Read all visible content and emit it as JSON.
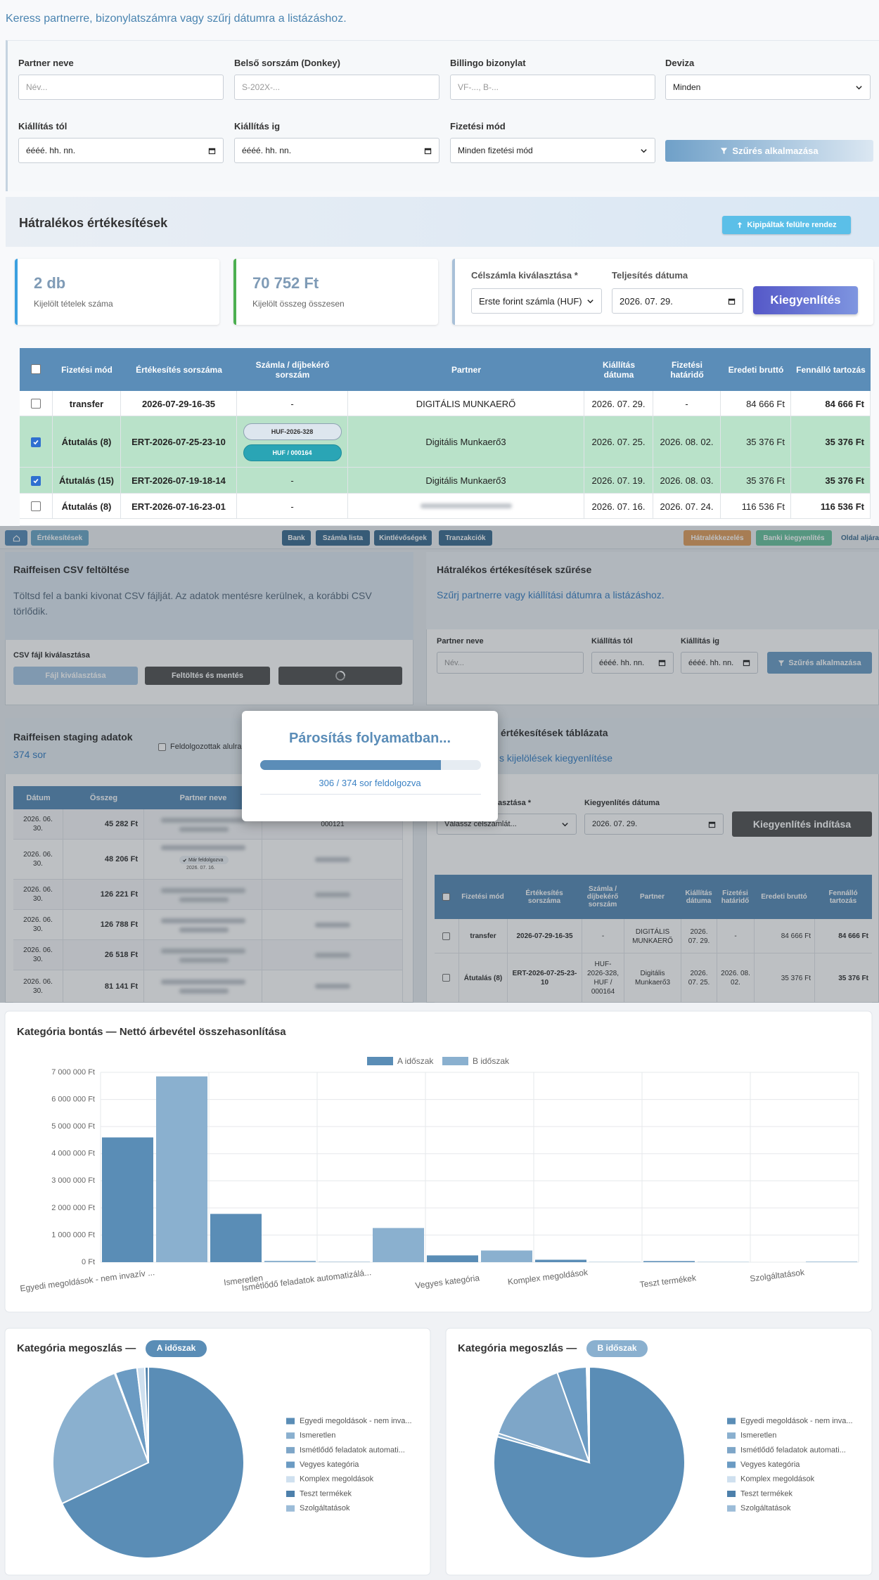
{
  "search_hint": "Keress partnerre, bizonylatszámra vagy szűrj dátumra a listázáshoz.",
  "filters": {
    "fields": [
      {
        "label": "Partner neve",
        "placeholder": "Név..."
      },
      {
        "label": "Belső sorszám (Donkey)",
        "placeholder": "S-202X-..."
      },
      {
        "label": "Billingo bizonylat",
        "placeholder": "VF-..., B-..."
      },
      {
        "label": "Deviza",
        "placeholder": "Minden"
      },
      {
        "label": "Kiállítás tól",
        "placeholder": "éééé. hh. nn."
      },
      {
        "label": "Kiállítás ig",
        "placeholder": "éééé. hh. nn."
      },
      {
        "label": "Fizetési mód",
        "placeholder": "Minden fizetési mód"
      }
    ],
    "button": "Szűrés alkalmazása"
  },
  "overdue": {
    "title": "Hátralékos értékesítések",
    "sort_button": "Kipipáltak felülre rendez",
    "stats": [
      {
        "value": "2 db",
        "label": "Kijelölt tételek száma"
      },
      {
        "value": "70 752 Ft",
        "label": "Kijelölt összeg összesen"
      }
    ],
    "settle": {
      "account_label": "Célszámla kiválasztása *",
      "account_value": "Erste forint számla (HUF)",
      "date_label": "Teljesítés dátuma",
      "date_value": "2026. 07. 29.",
      "button": "Kiegyenlítés"
    },
    "table": {
      "headers": [
        "Fizetési mód",
        "Értékesítés sorszáma",
        "Számla / díjbekérő sorszám",
        "Partner",
        "Kiállítás dátuma",
        "Fizetési határidő",
        "Eredeti bruttó",
        "Fennálló tartozás"
      ],
      "rows": [
        {
          "checked": false,
          "cells": [
            "transfer",
            "2026-07-29-16-35",
            "-",
            "DIGITÁLIS MUNKAERŐ",
            "2026. 07. 29.",
            "-",
            "84 666 Ft",
            "84 666 Ft"
          ]
        },
        {
          "checked": true,
          "cells": [
            "Átutalás (8)",
            "ERT-2026-07-25-23-10",
            [
              "HUF-2026-328",
              "HUF / 000164"
            ],
            "Digitális Munkaerő3",
            "2026. 07. 25.",
            "2026. 08. 02.",
            "35 376 Ft",
            "35 376 Ft"
          ]
        },
        {
          "checked": true,
          "cells": [
            "Átutalás (15)",
            "ERT-2026-07-19-18-14",
            "-",
            "Digitális Munkaerő3",
            "2026. 07. 19.",
            "2026. 08. 03.",
            "35 376 Ft",
            "35 376 Ft"
          ]
        },
        {
          "checked": false,
          "cells": [
            "Átutalás (8)",
            "ERT-2026-07-16-23-01",
            "-",
            null,
            "2026. 07. 16.",
            "2026. 07. 24.",
            "116 536 Ft",
            "116 536 Ft"
          ]
        }
      ]
    }
  },
  "background": {
    "nav": [
      "Értékesítések",
      "Bank",
      "Számla lista",
      "Kintlévőségek",
      "Tranzakciók",
      "Hátralékkezelés",
      "Banki kiegyenlítés",
      "Oldal aljára"
    ],
    "csv": {
      "title": "Raiffeisen CSV feltöltése",
      "desc": "Töltsd fel a banki kivonat CSV fájlját. Az adatok mentésre kerülnek, a korábbi CSV törlődik.",
      "file_label": "CSV fájl kiválasztása",
      "buttons": [
        "Fájl kiválasztása",
        "Feltöltés és mentés"
      ]
    },
    "filter": {
      "title": "Hátralékos értékesítések szűrése",
      "desc": "Szűrj partnerre vagy kiállítási dátumra a listázáshoz.",
      "fields": [
        {
          "label": "Partner neve",
          "placeholder": "Név..."
        },
        {
          "label": "Kiállítás tól",
          "placeholder": "éééé. hh. nn."
        },
        {
          "label": "Kiállítás ig",
          "placeholder": "éééé. hh. nn."
        }
      ],
      "button": "Szűrés alkalmazása"
    },
    "staging": {
      "title": "Raiffeisen staging adatok",
      "count": "374 sor",
      "toggle": "Feldolgozottak alulra",
      "headers": [
        "Dátum",
        "Összeg",
        "Partner neve"
      ],
      "rows": [
        {
          "date": "2026. 06. 30.",
          "amount": "45 282 Ft",
          "ref": "000121"
        },
        {
          "date": "2026. 06. 30.",
          "amount": "48 206 Ft",
          "note": {
            "status": "Már feldolgozva",
            "date": "2026. 07. 16."
          }
        },
        {
          "date": "2026. 06. 30.",
          "amount": "126 221 Ft"
        },
        {
          "date": "2026. 06. 30.",
          "amount": "126 788 Ft"
        },
        {
          "date": "2026. 06. 30.",
          "amount": "26 518 Ft"
        },
        {
          "date": "2026. 06. 30.",
          "amount": "81 141 Ft"
        }
      ]
    },
    "settle": {
      "title": "értékesítések táblázata",
      "desc": "s kijelölések kiegyenlítése",
      "account_label": "asztása *",
      "account_value": "Válassz célszámlát...",
      "date_label": "Kiegyenlítés dátuma",
      "date_value": "2026. 07. 29.",
      "button": "Kiegyenlítés indítása",
      "table": {
        "headers": [
          "Fizetési mód",
          "Értékesítés sorszáma",
          "Számla / díjbekérő sorszám",
          "Partner",
          "Kiállítás dátuma",
          "Fizetési határidő",
          "Eredeti bruttó",
          "Fennálló tartozás"
        ],
        "rows": [
          {
            "cells": [
              "transfer",
              "2026-07-29-16-35",
              "-",
              "DIGITÁLIS MUNKAERŐ",
              "2026. 07. 29.",
              "-",
              "84 666 Ft",
              "84 666 Ft"
            ]
          },
          {
            "cells": [
              "Átutalás (8)",
              "ERT-2026-07-25-23-10",
              "HUF-2026-328, HUF / 000164",
              "Digitális Munkaerő3",
              "2026. 07. 25.",
              "2026. 08. 02.",
              "35 376 Ft",
              "35 376 Ft"
            ]
          }
        ]
      }
    }
  },
  "modal": {
    "title": "Párosítás folyamatban...",
    "progress": {
      "done": 306,
      "total": 374,
      "label": "306 / 374 sor feldolgozva"
    }
  },
  "chart_data": [
    {
      "type": "bar",
      "title": "Kategória bontás — Nettó árbevétel összehasonlítása",
      "categories": [
        "Egyedi megoldások - nem invazív ...",
        "Ismeretlen",
        "Ismétlődő feladatok automatizálá...",
        "Vegyes kategória",
        "Komplex megoldások",
        "Teszt termékek",
        "Szolgáltatások"
      ],
      "series": [
        {
          "name": "A időszak",
          "color": "#5a8db6",
          "values": [
            4600000,
            1780000,
            10000,
            250000,
            90000,
            40000,
            0
          ]
        },
        {
          "name": "B időszak",
          "color": "#8ab0cf",
          "values": [
            6850000,
            50000,
            1260000,
            430000,
            10000,
            10000,
            20000
          ]
        }
      ],
      "ylim": [
        0,
        7000000
      ],
      "yticks": [
        {
          "value": 0,
          "label": "0 Ft"
        },
        {
          "value": 1000000,
          "label": "1 000 000 Ft"
        },
        {
          "value": 2000000,
          "label": "2 000 000 Ft"
        },
        {
          "value": 3000000,
          "label": "3 000 000 Ft"
        },
        {
          "value": 4000000,
          "label": "4 000 000 Ft"
        },
        {
          "value": 5000000,
          "label": "5 000 000 Ft"
        },
        {
          "value": 6000000,
          "label": "6 000 000 Ft"
        },
        {
          "value": 7000000,
          "label": "7 000 000 Ft"
        }
      ],
      "grid": true,
      "legend": "top"
    },
    {
      "type": "pie",
      "title": "Kategória megoszlás —",
      "badge": "A időszak",
      "badge_color": "#5a8db6",
      "categories": [
        "Egyedi megoldások - nem inva...",
        "Ismeretlen",
        "Ismétlődő feladatok automati...",
        "Vegyes kategória",
        "Komplex megoldások",
        "Teszt termékek",
        "Szolgáltatások"
      ],
      "values": [
        4600000,
        1780000,
        10000,
        250000,
        90000,
        40000,
        0
      ],
      "colors": [
        "#5a8db6",
        "#8ab0cf",
        "#7ea6c8",
        "#6b9bc3",
        "#cfe0ef",
        "#4d80ab",
        "#9cbcd8"
      ],
      "legend": "right"
    },
    {
      "type": "pie",
      "title": "Kategória megoszlás —",
      "badge": "B időszak",
      "badge_color": "#8ab0cf",
      "categories": [
        "Egyedi megoldások - nem inva...",
        "Ismeretlen",
        "Ismétlődő feladatok automati...",
        "Vegyes kategória",
        "Komplex megoldások",
        "Teszt termékek",
        "Szolgáltatások"
      ],
      "values": [
        6850000,
        50000,
        1260000,
        430000,
        10000,
        10000,
        20000
      ],
      "colors": [
        "#5a8db6",
        "#8ab0cf",
        "#7ea6c8",
        "#6b9bc3",
        "#cfe0ef",
        "#4d80ab",
        "#9cbcd8"
      ],
      "legend": "right"
    }
  ]
}
